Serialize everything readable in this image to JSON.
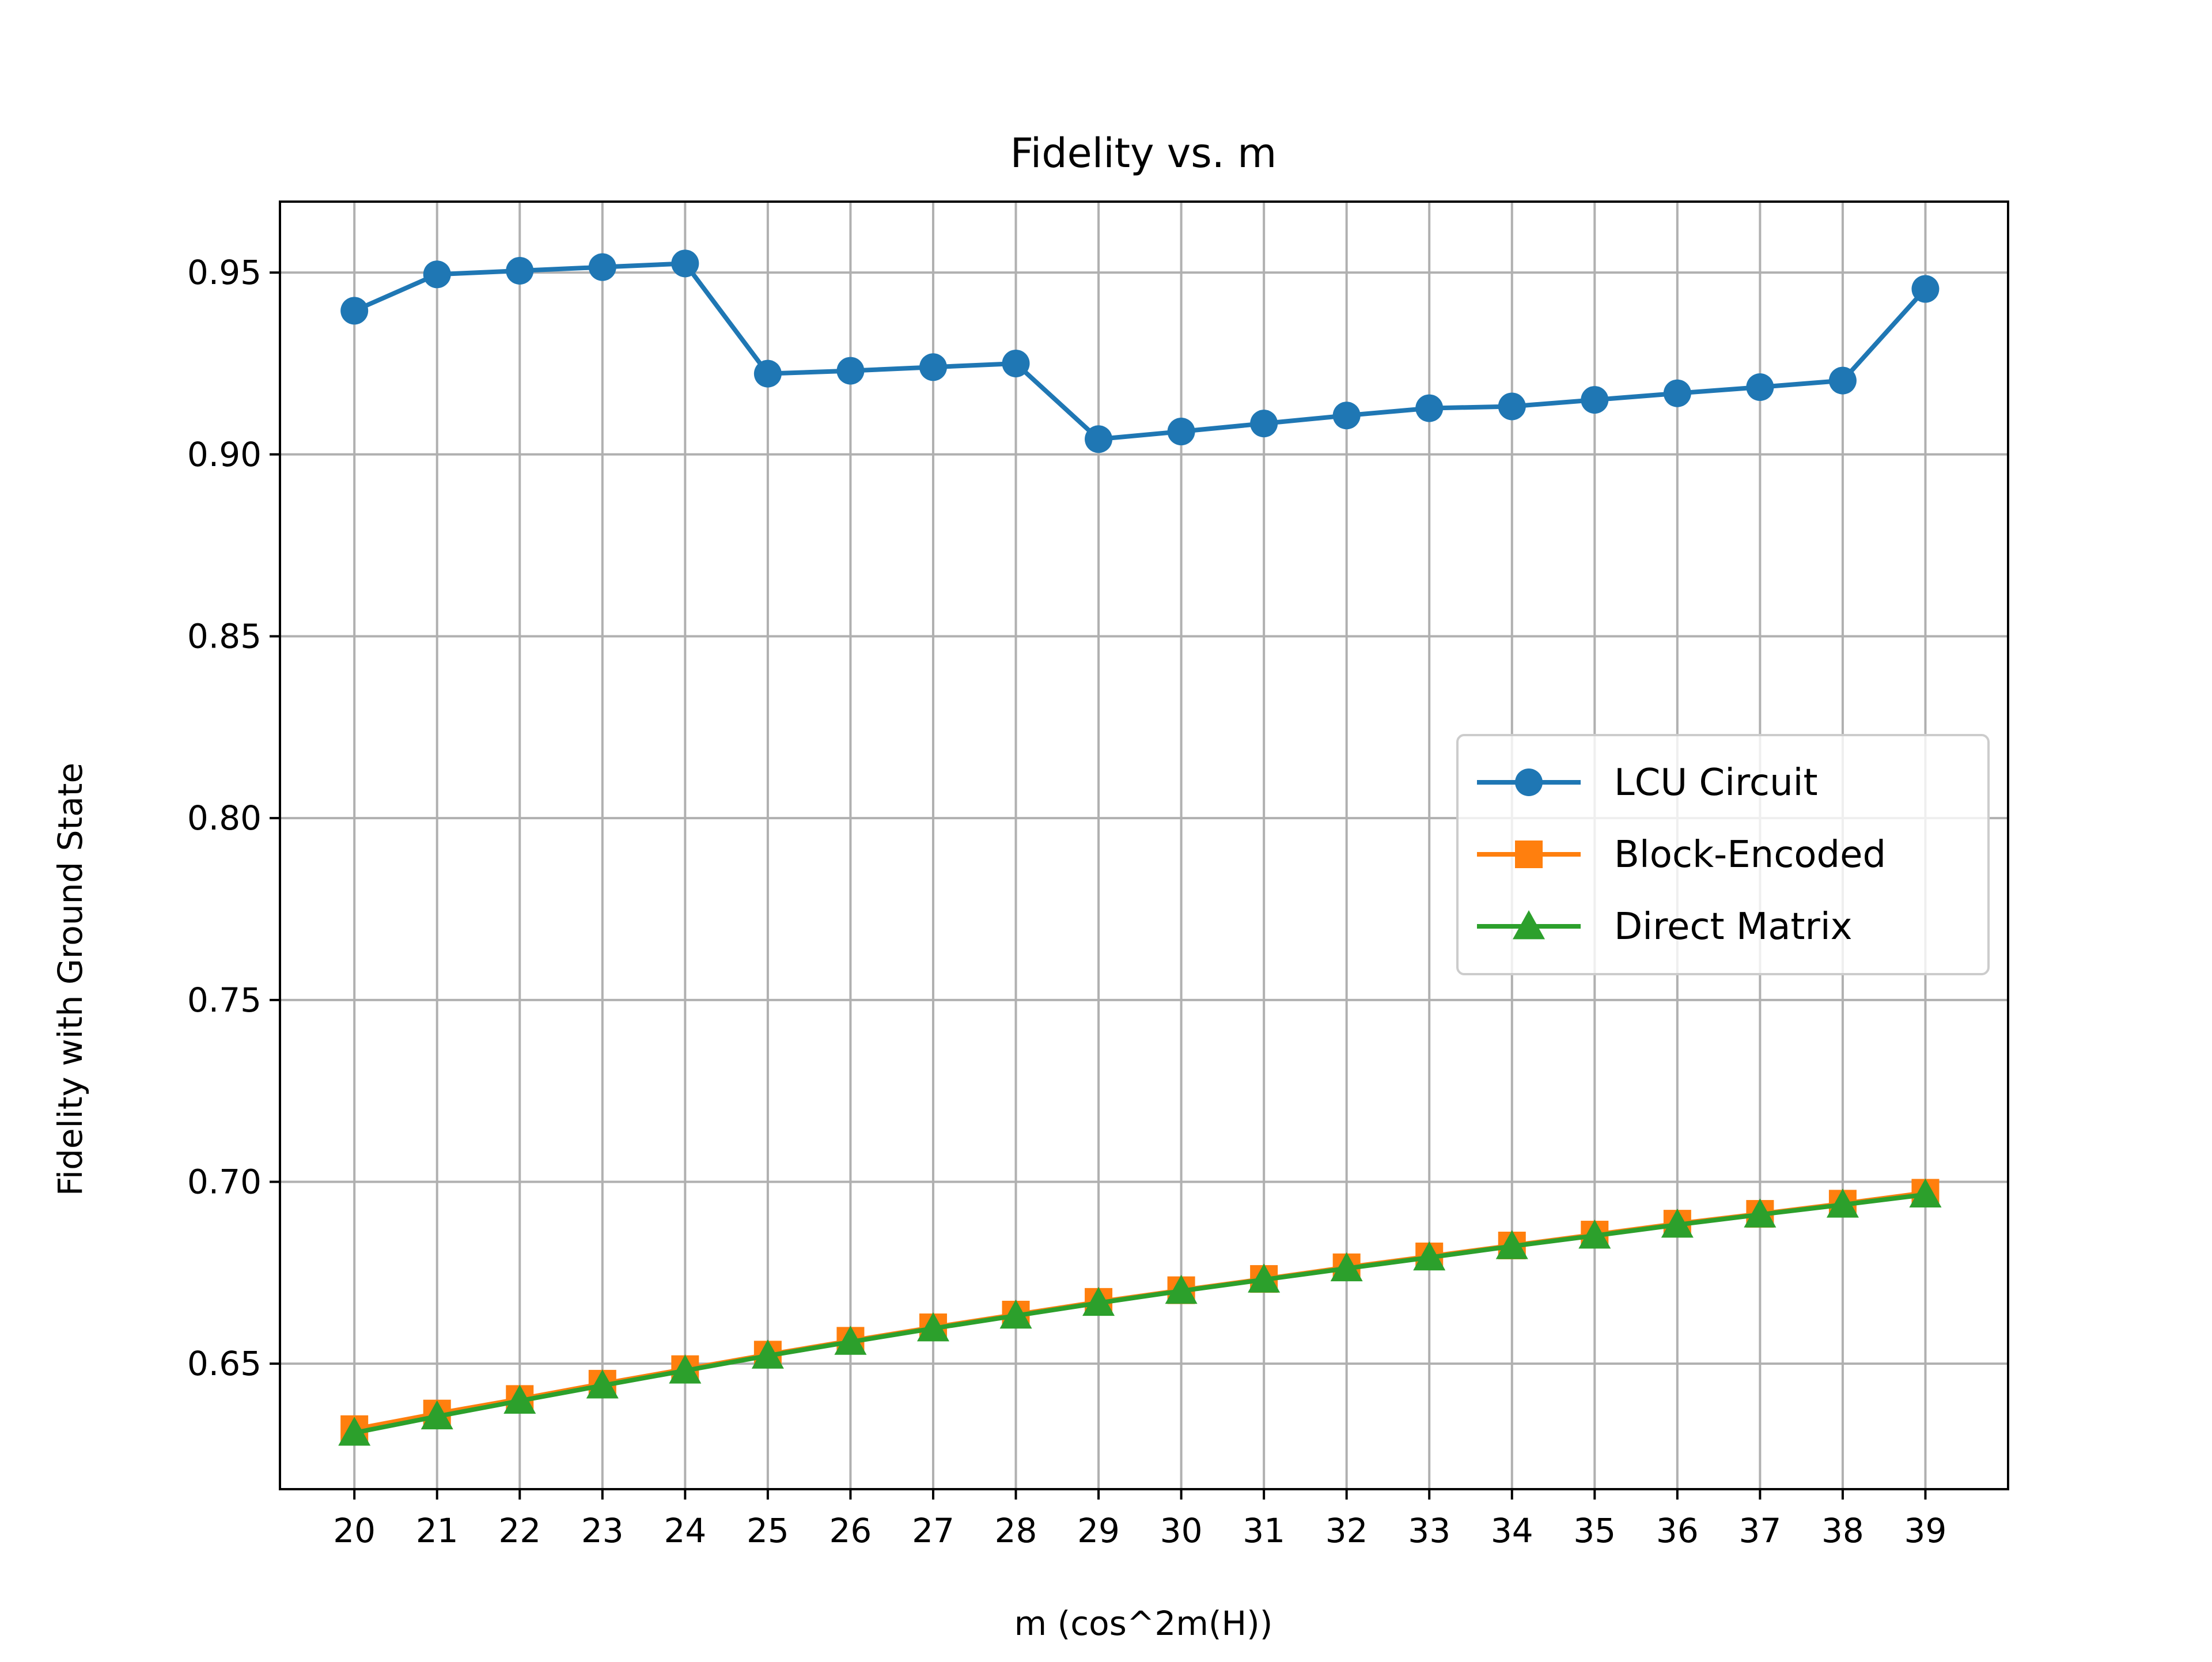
{
  "chart_data": {
    "type": "line",
    "title": "Fidelity vs. m",
    "xlabel": "m (cos^2m(H))",
    "ylabel": "Fidelity with Ground State",
    "x": [
      20,
      21,
      22,
      23,
      24,
      25,
      26,
      27,
      28,
      29,
      30,
      31,
      32,
      33,
      34,
      35,
      36,
      37,
      38,
      39
    ],
    "xlim": [
      19.1,
      40.0
    ],
    "ylim": [
      0.6155,
      0.9695
    ],
    "yticks": [
      0.65,
      0.7,
      0.75,
      0.8,
      0.85,
      0.9,
      0.95
    ],
    "ytick_labels": [
      "0.65",
      "0.70",
      "0.75",
      "0.80",
      "0.85",
      "0.90",
      "0.95"
    ],
    "grid": true,
    "legend_position": "center-right",
    "series": [
      {
        "name": "LCU Circuit",
        "color": "#1f77b4",
        "marker": "circle",
        "values": [
          0.9395,
          0.9495,
          0.9505,
          0.9515,
          0.9525,
          0.9222,
          0.923,
          0.924,
          0.925,
          0.9042,
          0.9063,
          0.9085,
          0.9107,
          0.9127,
          0.9132,
          0.915,
          0.9168,
          0.9185,
          0.9203,
          0.9455
        ]
      },
      {
        "name": "Block-Encoded",
        "color": "#ff7f0e",
        "marker": "square",
        "values": [
          0.632,
          0.6363,
          0.6403,
          0.6445,
          0.6485,
          0.6525,
          0.6563,
          0.66,
          0.6635,
          0.667,
          0.6702,
          0.6733,
          0.6765,
          0.6795,
          0.6825,
          0.6855,
          0.6885,
          0.6912,
          0.694,
          0.697
        ]
      },
      {
        "name": "Direct Matrix",
        "color": "#2ca02c",
        "marker": "triangle",
        "values": [
          0.631,
          0.6355,
          0.6398,
          0.644,
          0.6481,
          0.6522,
          0.656,
          0.6597,
          0.6632,
          0.6667,
          0.67,
          0.6731,
          0.6762,
          0.6792,
          0.6823,
          0.6852,
          0.6882,
          0.691,
          0.6937,
          0.6965
        ]
      }
    ]
  }
}
